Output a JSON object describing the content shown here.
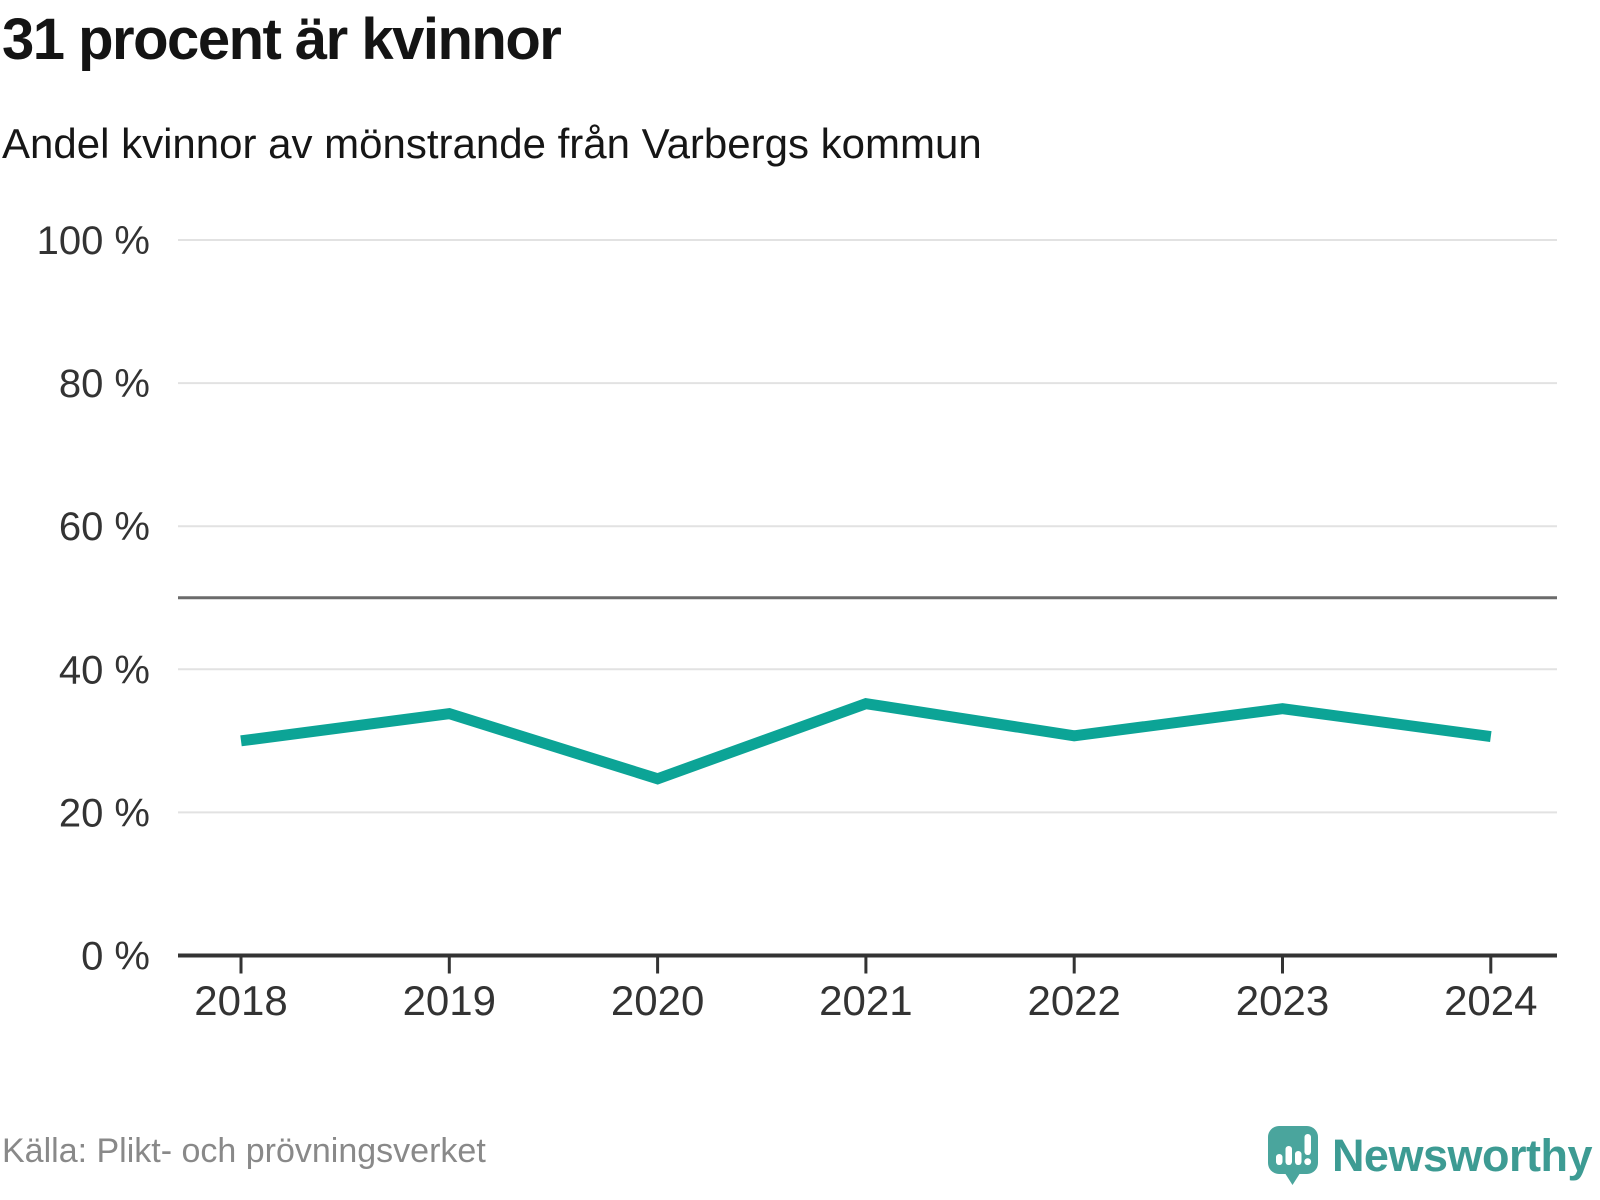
{
  "header": {
    "title": "31 procent är kvinnor",
    "subtitle": "Andel kvinnor av mönstrande från Varbergs kommun"
  },
  "footer": {
    "source": "Källa: Plikt- och prövningsverket",
    "brand": "Newsworthy"
  },
  "colors": {
    "line": "#0ca496",
    "grid": "#e2e2e2",
    "reference_line": "#6b6b6b",
    "axis": "#333333",
    "tick_label": "#333333",
    "source_text": "#898989",
    "brand_teal": "#3d9b93",
    "brand_bubble": "#4aa59d"
  },
  "chart_data": {
    "type": "line",
    "title": "31 procent är kvinnor",
    "subtitle": "Andel kvinnor av mönstrande från Varbergs kommun",
    "x": [
      2018,
      2019,
      2020,
      2021,
      2022,
      2023,
      2024
    ],
    "series": [
      {
        "name": "Andel kvinnor av mönstrande",
        "values": [
          30,
          33.8,
          24.7,
          35.2,
          30.7,
          34.5,
          30.6
        ]
      }
    ],
    "unit": "%",
    "y_ticks": [
      {
        "value": 0,
        "label": "0 %"
      },
      {
        "value": 20,
        "label": "20 %"
      },
      {
        "value": 40,
        "label": "40 %"
      },
      {
        "value": 60,
        "label": "60 %"
      },
      {
        "value": 80,
        "label": "80 %"
      },
      {
        "value": 100,
        "label": "100 %"
      }
    ],
    "ylim": [
      0,
      100
    ],
    "reference_line": 50,
    "grid": "horizontal",
    "legend": "none",
    "source": "Källa: Plikt- och prövningsverket"
  }
}
